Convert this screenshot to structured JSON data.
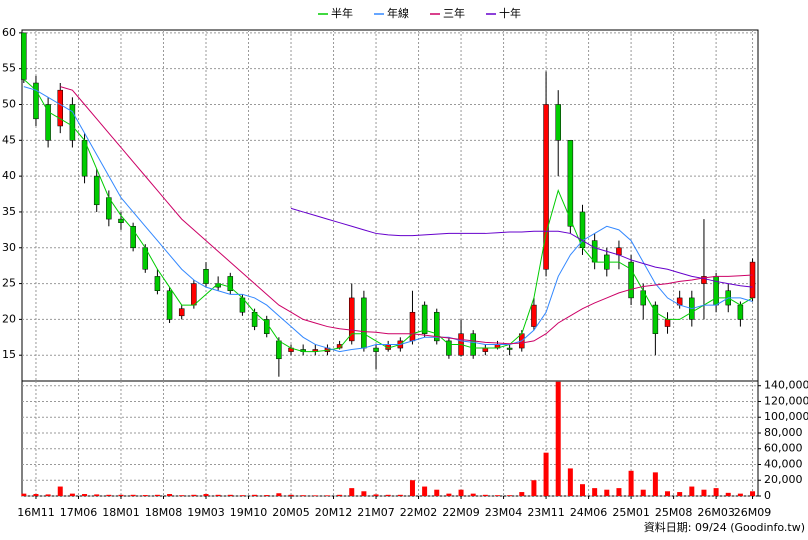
{
  "chart_data": [
    {
      "type": "candlestick",
      "x": [
        0,
        2,
        4,
        6,
        8,
        10,
        12,
        14,
        16,
        18,
        20,
        22,
        24,
        26,
        28,
        30,
        32,
        34,
        36,
        38,
        40,
        42,
        44,
        46,
        48,
        50,
        52,
        54,
        56,
        58,
        60,
        62,
        64,
        66,
        68,
        70,
        72,
        74,
        76,
        78,
        80,
        82,
        84,
        86,
        88,
        90,
        92,
        94,
        96,
        98,
        100,
        102,
        104,
        106,
        108,
        110,
        112,
        114,
        116,
        118,
        120
      ],
      "xlim": [
        -0.3,
        120.9
      ],
      "open": [
        60,
        53,
        50,
        47,
        50,
        45,
        40,
        37,
        34,
        33,
        30,
        26,
        24,
        20.5,
        22,
        27,
        25,
        26,
        23,
        21,
        20,
        17,
        15.5,
        15.8,
        15.5,
        15.5,
        16,
        17,
        23,
        16,
        15.8,
        16,
        17,
        22,
        21,
        17,
        15,
        18,
        15.5,
        16,
        16,
        16,
        19,
        27,
        50,
        45,
        35,
        31,
        29,
        29,
        28,
        24,
        22,
        19,
        22,
        23,
        25,
        26,
        24,
        22,
        23
      ],
      "high": [
        60,
        54,
        51,
        53,
        51,
        46,
        41,
        38,
        35,
        33.5,
        30.5,
        27,
        24.5,
        22,
        25.5,
        28,
        26,
        26.5,
        23.5,
        21.5,
        20.5,
        17.5,
        16.5,
        16.5,
        16.5,
        16.5,
        17,
        25,
        24,
        16.5,
        17,
        17.5,
        24,
        22.5,
        21.5,
        17.5,
        20,
        18.5,
        16.5,
        17,
        16.5,
        18.5,
        23,
        54.6,
        52,
        45,
        36,
        32,
        30,
        31,
        29,
        25,
        22.5,
        21,
        24,
        24,
        34,
        26.5,
        25,
        22.5,
        28.5
      ],
      "low": [
        53,
        47,
        44,
        46,
        44,
        39,
        35,
        33,
        32.5,
        29.5,
        26.5,
        23.5,
        19.5,
        20,
        21.5,
        24.5,
        24,
        23.5,
        20.5,
        18.5,
        17.5,
        12,
        15,
        15,
        15,
        15,
        15.8,
        16.5,
        15.5,
        13,
        15.5,
        15.5,
        16.5,
        17.5,
        16.5,
        14.5,
        14.8,
        14.5,
        15,
        15.8,
        15,
        15.5,
        18.5,
        26,
        40,
        32,
        29,
        27,
        26,
        27,
        22,
        20,
        15,
        18,
        21.5,
        19,
        20,
        21,
        21,
        19,
        22.5
      ],
      "close": [
        53.5,
        48,
        45,
        52,
        45,
        40,
        36,
        34,
        33.5,
        30,
        27,
        24,
        20,
        21.5,
        25,
        25,
        24.5,
        24,
        21,
        19,
        18,
        14.5,
        16,
        15.5,
        15.8,
        16,
        16.5,
        23,
        16,
        15.5,
        16.5,
        17,
        21,
        18,
        17,
        15,
        18,
        15,
        16,
        16.5,
        15.8,
        18,
        22,
        50,
        45,
        33,
        30,
        28,
        27,
        30,
        23,
        22,
        18,
        20,
        23,
        20,
        26,
        22,
        22,
        20,
        28
      ],
      "up_color": "#ff0000",
      "down_color": "#00cc00",
      "series": [
        {
          "name": "半年",
          "color": "#00cc00",
          "values": [
            53.5,
            52,
            49,
            48,
            47,
            45,
            41,
            37,
            34.5,
            32.5,
            30,
            27,
            24.5,
            22,
            22,
            23.5,
            25,
            24.5,
            23,
            21,
            19.5,
            17,
            16,
            15.5,
            15.5,
            15.7,
            16,
            18,
            18,
            17,
            16,
            16.5,
            18,
            18.5,
            18,
            16.5,
            16.5,
            16,
            16,
            16,
            16.5,
            18,
            23,
            32,
            38,
            34,
            30,
            28,
            28,
            28,
            27,
            24,
            21,
            20,
            20,
            21,
            22,
            23,
            23,
            22,
            23
          ]
        },
        {
          "name": "年線",
          "color": "#3388ff",
          "values": [
            52.5,
            52,
            51,
            50,
            49,
            46,
            43,
            40,
            37,
            35,
            33,
            31,
            29,
            27,
            25.5,
            24.5,
            24,
            23.5,
            23.5,
            23,
            22,
            20.5,
            19,
            17.5,
            16.5,
            16,
            15.5,
            15.8,
            16,
            16.5,
            16.5,
            16.5,
            17,
            17.5,
            17.5,
            17.5,
            17,
            16.8,
            16.5,
            16.5,
            16.5,
            17,
            18.5,
            21,
            26,
            29,
            31,
            32,
            33,
            32.5,
            31,
            28,
            25,
            23,
            22,
            21.5,
            22,
            22,
            23,
            23,
            22.5
          ]
        },
        {
          "name": "三年",
          "color": "#cc0066",
          "values": [
            null,
            null,
            null,
            52.5,
            52,
            50,
            48,
            46,
            44,
            42,
            40,
            38,
            36,
            34,
            32.5,
            31,
            29.5,
            28,
            26.5,
            25,
            23.5,
            22,
            21,
            20,
            19.5,
            19,
            18.7,
            18.5,
            18.3,
            18.2,
            18,
            18,
            18,
            17.8,
            17.6,
            17.4,
            17.2,
            17,
            16.8,
            16.7,
            16.6,
            16.7,
            17,
            18,
            19.5,
            20.5,
            21.5,
            22.3,
            23,
            23.7,
            24.2,
            24.6,
            24.8,
            25,
            25.3,
            25.5,
            25.8,
            26,
            26,
            26.1,
            26.2
          ]
        },
        {
          "name": "十年",
          "color": "#6600cc",
          "values": [
            null,
            null,
            null,
            null,
            null,
            null,
            null,
            null,
            null,
            null,
            null,
            null,
            null,
            null,
            null,
            null,
            null,
            null,
            null,
            null,
            null,
            null,
            35.5,
            35,
            34.5,
            34,
            33.5,
            33,
            32.5,
            32,
            31.8,
            31.7,
            31.7,
            31.8,
            31.9,
            32,
            32,
            32,
            32,
            32.1,
            32.2,
            32.2,
            32.3,
            32.3,
            32.3,
            32,
            31,
            30,
            29.5,
            29,
            28.3,
            27.8,
            27.3,
            27,
            26.5,
            26,
            25.7,
            25.3,
            25,
            24.7,
            24.5
          ]
        }
      ],
      "ylim": [
        11.4,
        60.4
      ],
      "yticks": [
        15,
        20,
        25,
        30,
        35,
        40,
        45,
        50,
        55,
        60
      ],
      "grid": true
    },
    {
      "type": "bar",
      "x": [
        0,
        2,
        4,
        6,
        8,
        10,
        12,
        14,
        16,
        18,
        20,
        22,
        24,
        26,
        28,
        30,
        32,
        34,
        36,
        38,
        40,
        42,
        44,
        46,
        48,
        50,
        52,
        54,
        56,
        58,
        60,
        62,
        64,
        66,
        68,
        70,
        72,
        74,
        76,
        78,
        80,
        82,
        84,
        86,
        88,
        90,
        92,
        94,
        96,
        98,
        100,
        102,
        104,
        106,
        108,
        110,
        112,
        114,
        116,
        118,
        120
      ],
      "xlim": [
        -0.3,
        120.9
      ],
      "values": [
        3000,
        2500,
        2000,
        12000,
        3000,
        2500,
        2000,
        1500,
        1500,
        1500,
        1200,
        1500,
        2500,
        1000,
        1500,
        2500,
        1500,
        1500,
        1000,
        1500,
        1200,
        3500,
        1500,
        1000,
        800,
        800,
        1500,
        10000,
        6000,
        2000,
        1500,
        1500,
        20000,
        12000,
        8000,
        3000,
        8000,
        3000,
        1500,
        1000,
        1000,
        5000,
        20000,
        55000,
        145000,
        35000,
        15000,
        10000,
        8000,
        10000,
        32000,
        8000,
        30000,
        6000,
        5000,
        12000,
        8000,
        10000,
        4000,
        3000,
        6000
      ],
      "color": "#ff0000",
      "ylim": [
        0,
        146000
      ],
      "yticks": [
        0,
        {
          "value": 20000,
          "label": "20,000"
        },
        {
          "value": 40000,
          "label": "40,000"
        },
        {
          "value": 60000,
          "label": "60,000"
        },
        {
          "value": 80000,
          "label": "80,000"
        },
        {
          "value": 100000,
          "label": "100,000"
        },
        {
          "value": 120000,
          "label": "120,000"
        },
        {
          "value": 140000,
          "label": "140,000"
        }
      ],
      "xticks": [
        {
          "value": 2,
          "label": "16M11"
        },
        {
          "value": 9,
          "label": "17M06"
        },
        {
          "value": 16,
          "label": "18M01"
        },
        {
          "value": 23,
          "label": "18M08"
        },
        {
          "value": 30,
          "label": "19M03"
        },
        {
          "value": 37,
          "label": "19M10"
        },
        {
          "value": 44,
          "label": "20M05"
        },
        {
          "value": 51,
          "label": "20M12"
        },
        {
          "value": 58,
          "label": "21M07"
        },
        {
          "value": 65,
          "label": "22M02"
        },
        {
          "value": 72,
          "label": "22M09"
        },
        {
          "value": 79,
          "label": "23M04"
        },
        {
          "value": 86,
          "label": "23M11"
        },
        {
          "value": 93,
          "label": "24M06"
        },
        {
          "value": 100,
          "label": "25M01"
        },
        {
          "value": 107,
          "label": "25M08"
        },
        {
          "value": 114,
          "label": "26M03"
        },
        {
          "value": 120,
          "label": "26M09"
        }
      ],
      "grid": true,
      "note": "資料日期: 09/24 (Goodinfo.tw)"
    }
  ]
}
